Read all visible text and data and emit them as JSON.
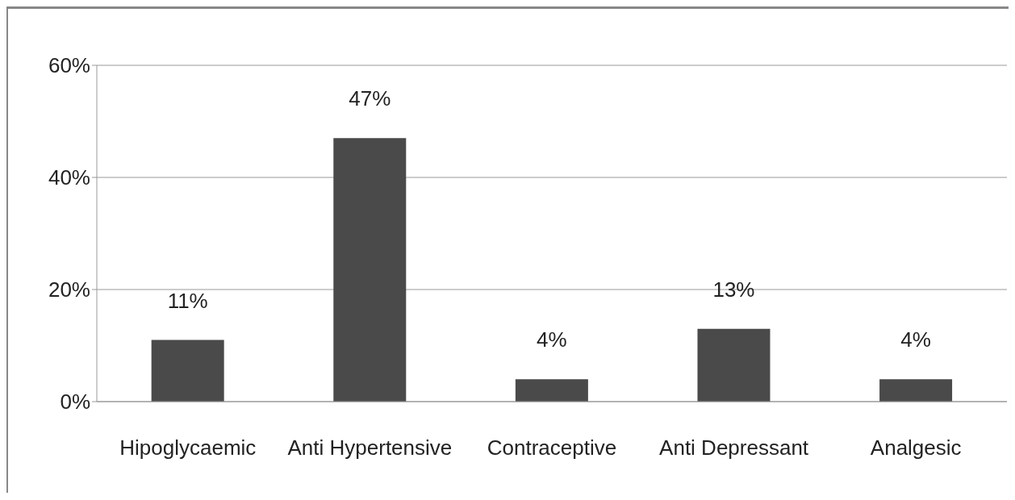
{
  "chart_data": {
    "type": "bar",
    "categories": [
      "Hipoglycaemic",
      "Anti Hypertensive",
      "Contraceptive",
      "Anti Depressant",
      "Analgesic"
    ],
    "values": [
      11,
      47,
      4,
      13,
      4
    ],
    "value_labels": [
      "11%",
      "47%",
      "4%",
      "13%",
      "4%"
    ],
    "color": "#4a4a4a",
    "ylim": [
      0,
      60
    ],
    "yticks": [
      {
        "value": 0,
        "label": "0%"
      },
      {
        "value": 20,
        "label": "20%"
      },
      {
        "value": 40,
        "label": "40%"
      },
      {
        "value": 60,
        "label": "60%"
      }
    ],
    "grid": "y"
  }
}
